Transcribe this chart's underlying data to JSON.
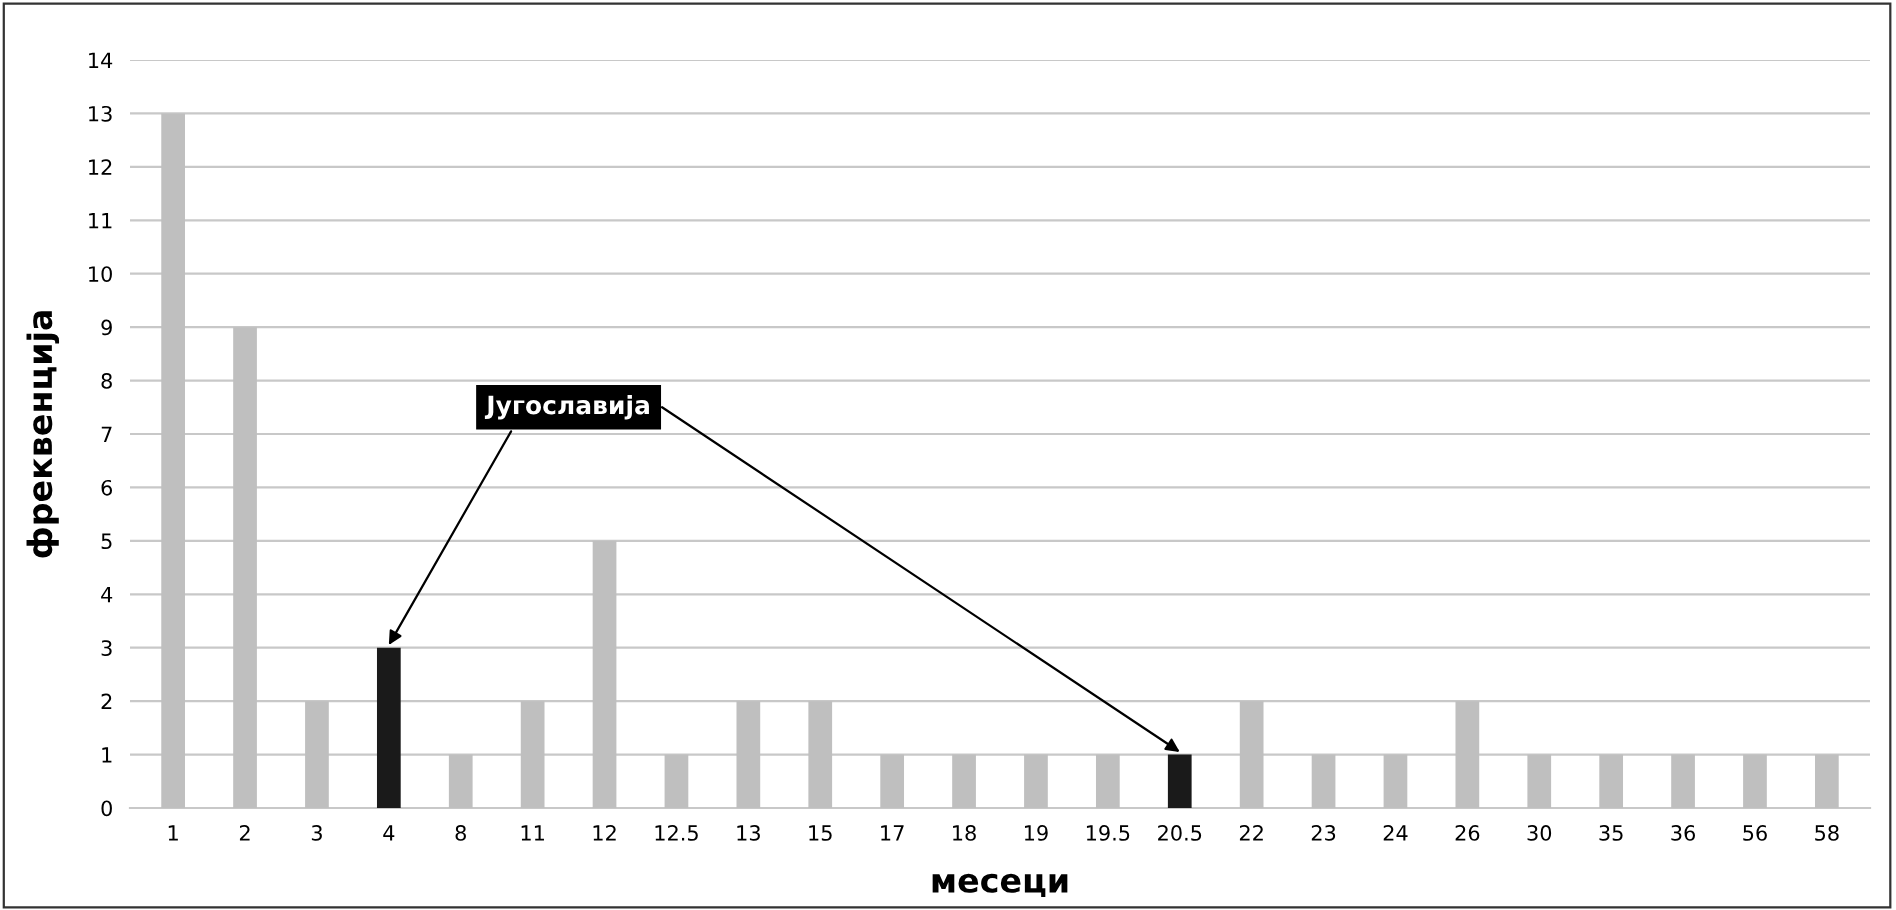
{
  "chart_data": {
    "type": "bar",
    "xlabel": "месеци",
    "ylabel": "фреквенција",
    "categories": [
      "1",
      "2",
      "3",
      "4",
      "8",
      "11",
      "12",
      "12.5",
      "13",
      "15",
      "17",
      "18",
      "19",
      "19.5",
      "20.5",
      "22",
      "23",
      "24",
      "26",
      "30",
      "35",
      "36",
      "56",
      "58"
    ],
    "values": [
      13,
      9,
      2,
      3,
      1,
      2,
      5,
      1,
      2,
      2,
      1,
      1,
      1,
      1,
      1,
      2,
      1,
      1,
      2,
      1,
      1,
      1,
      1,
      1
    ],
    "colors": [
      "#bfbfbf",
      "#bfbfbf",
      "#bfbfbf",
      "#1a1a1a",
      "#bfbfbf",
      "#bfbfbf",
      "#bfbfbf",
      "#bfbfbf",
      "#bfbfbf",
      "#bfbfbf",
      "#bfbfbf",
      "#bfbfbf",
      "#bfbfbf",
      "#bfbfbf",
      "#1a1a1a",
      "#bfbfbf",
      "#bfbfbf",
      "#bfbfbf",
      "#bfbfbf",
      "#bfbfbf",
      "#bfbfbf",
      "#bfbfbf",
      "#bfbfbf",
      "#bfbfbf"
    ],
    "ylim": [
      0,
      14
    ],
    "yticks": [
      0,
      1,
      2,
      3,
      4,
      5,
      6,
      7,
      8,
      9,
      10,
      11,
      12,
      13,
      14
    ],
    "grid": "y",
    "annotations": [
      {
        "text": "Југославија",
        "x": "4",
        "y": 3
      }
    ]
  }
}
